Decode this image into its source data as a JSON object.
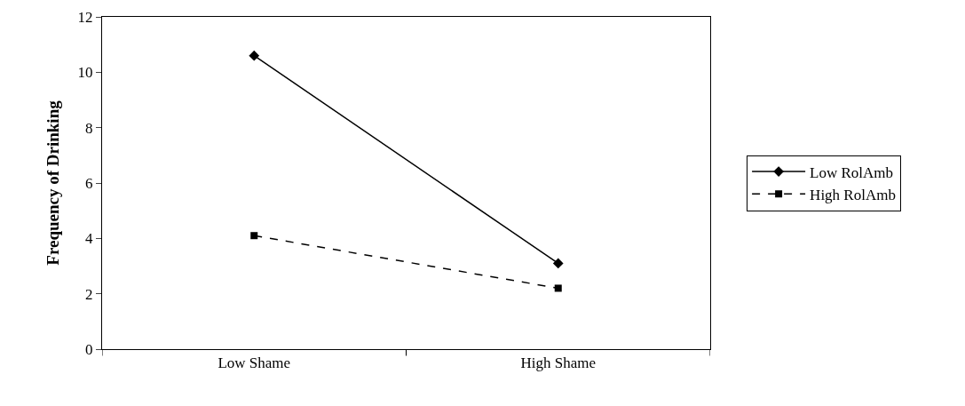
{
  "chart_data": {
    "type": "line",
    "ylabel": "Frequency of Drinking",
    "categories": [
      "Low Shame",
      "High Shame"
    ],
    "series": [
      {
        "name": "Low RolAmb",
        "color": "#000000",
        "values": [
          10.6,
          3.1
        ],
        "marker": "diamond",
        "line_style": "solid"
      },
      {
        "name": "High RolAmb",
        "color": "#000000",
        "values": [
          4.1,
          2.2
        ],
        "marker": "square",
        "line_style": "dashed"
      }
    ],
    "ylim": [
      0,
      12
    ],
    "yticks": [
      0,
      2,
      4,
      6,
      8,
      10,
      12
    ],
    "legend": "right"
  }
}
